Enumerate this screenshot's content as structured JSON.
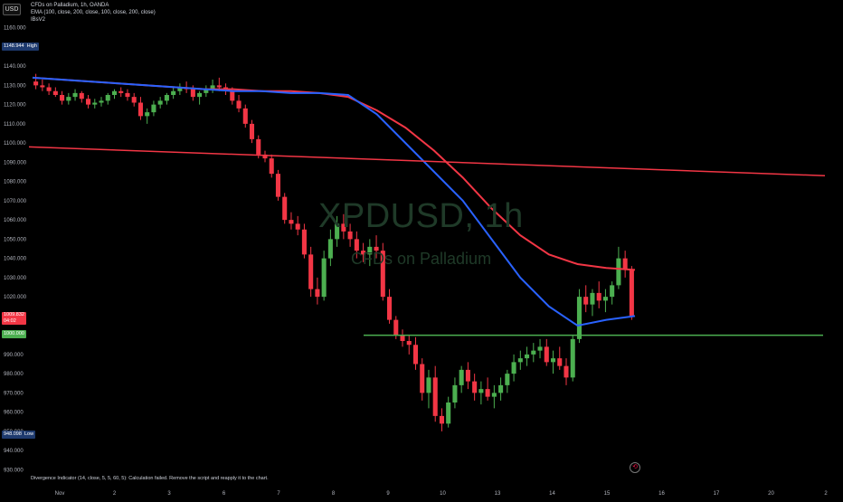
{
  "header": {
    "currency": "USD",
    "title": "CFDs on Palladium, 1h, OANDA",
    "indicator_line": "EMA (100, close, 200, close, 100, close, 200, close)",
    "indicator_line2": "IBsV2"
  },
  "watermark": {
    "symbol": "XPDUSD, 1h",
    "description": "CFDs on Palladium"
  },
  "footer": {
    "note": "Divergence Indicator (14, close, 5, 5, 60, 5): Calculation failed. Remove the script and reapply it to the chart."
  },
  "icons": {
    "replay": "replay-icon"
  },
  "colors": {
    "background": "#000000",
    "ema100": "#2962ff",
    "ema200": "#f23645",
    "trendline": "#f23645",
    "support": "#4caf50",
    "up": "#4caf50",
    "down": "#f23645"
  },
  "price_boxes": {
    "high_value": "1148.944",
    "high_label": "High",
    "current_value": "1009.832",
    "current_sub": "04:02",
    "support_value": "1000.000",
    "low_value": "948.098",
    "low_label": "Low"
  },
  "chart_data": {
    "type": "candlestick",
    "ylim": [
      925,
      1165
    ],
    "yticks": [
      "1160.000",
      "1150.000",
      "1140.000",
      "1130.000",
      "1120.000",
      "1110.000",
      "1100.000",
      "1090.000",
      "1080.000",
      "1070.000",
      "1060.000",
      "1050.000",
      "1040.000",
      "1030.000",
      "1020.000",
      "1010.000",
      "1000.000",
      "990.000",
      "980.000",
      "970.000",
      "960.000",
      "950.000",
      "940.000",
      "930.000"
    ],
    "xticks": [
      "Nov",
      "2",
      "3",
      "6",
      "7",
      "8",
      "9",
      "10",
      "13",
      "14",
      "15",
      "16",
      "17",
      "20",
      "2"
    ],
    "candles": [
      [
        1132,
        1136,
        1128,
        1130
      ],
      [
        1130,
        1133,
        1127,
        1129
      ],
      [
        1129,
        1131,
        1125,
        1127
      ],
      [
        1127,
        1129,
        1124,
        1125
      ],
      [
        1125,
        1127,
        1120,
        1122
      ],
      [
        1122,
        1126,
        1120,
        1124
      ],
      [
        1124,
        1128,
        1122,
        1126
      ],
      [
        1126,
        1127,
        1121,
        1123
      ],
      [
        1123,
        1125,
        1118,
        1120
      ],
      [
        1120,
        1123,
        1118,
        1121
      ],
      [
        1121,
        1124,
        1119,
        1122
      ],
      [
        1122,
        1126,
        1120,
        1125
      ],
      [
        1125,
        1128,
        1123,
        1127
      ],
      [
        1127,
        1129,
        1124,
        1126
      ],
      [
        1126,
        1128,
        1122,
        1124
      ],
      [
        1124,
        1126,
        1119,
        1121
      ],
      [
        1121,
        1124,
        1112,
        1114
      ],
      [
        1114,
        1118,
        1110,
        1116
      ],
      [
        1116,
        1122,
        1114,
        1120
      ],
      [
        1120,
        1124,
        1118,
        1122
      ],
      [
        1122,
        1126,
        1120,
        1125
      ],
      [
        1125,
        1129,
        1123,
        1127
      ],
      [
        1127,
        1131,
        1125,
        1129
      ],
      [
        1129,
        1132,
        1126,
        1128
      ],
      [
        1128,
        1130,
        1122,
        1124
      ],
      [
        1124,
        1127,
        1120,
        1126
      ],
      [
        1126,
        1130,
        1124,
        1128
      ],
      [
        1128,
        1133,
        1126,
        1130
      ],
      [
        1130,
        1134,
        1127,
        1129
      ],
      [
        1129,
        1131,
        1125,
        1127
      ],
      [
        1127,
        1129,
        1120,
        1122
      ],
      [
        1122,
        1125,
        1116,
        1118
      ],
      [
        1118,
        1120,
        1108,
        1110
      ],
      [
        1110,
        1112,
        1100,
        1102
      ],
      [
        1102,
        1104,
        1092,
        1094
      ],
      [
        1094,
        1096,
        1090,
        1092
      ],
      [
        1092,
        1094,
        1082,
        1084
      ],
      [
        1084,
        1086,
        1070,
        1072
      ],
      [
        1072,
        1074,
        1058,
        1060
      ],
      [
        1060,
        1064,
        1055,
        1058
      ],
      [
        1058,
        1062,
        1052,
        1055
      ],
      [
        1055,
        1058,
        1040,
        1042
      ],
      [
        1042,
        1046,
        1020,
        1024
      ],
      [
        1024,
        1030,
        1016,
        1020
      ],
      [
        1020,
        1044,
        1018,
        1040
      ],
      [
        1040,
        1055,
        1036,
        1050
      ],
      [
        1050,
        1062,
        1046,
        1058
      ],
      [
        1058,
        1063,
        1050,
        1054
      ],
      [
        1054,
        1058,
        1046,
        1050
      ],
      [
        1050,
        1054,
        1040,
        1044
      ],
      [
        1044,
        1048,
        1038,
        1042
      ],
      [
        1042,
        1050,
        1036,
        1046
      ],
      [
        1046,
        1052,
        1040,
        1044
      ],
      [
        1044,
        1048,
        1018,
        1020
      ],
      [
        1020,
        1024,
        1006,
        1008
      ],
      [
        1008,
        1010,
        998,
        1000
      ],
      [
        1000,
        1003,
        994,
        997
      ],
      [
        997,
        1000,
        990,
        995
      ],
      [
        995,
        999,
        982,
        985
      ],
      [
        985,
        988,
        966,
        970
      ],
      [
        970,
        982,
        962,
        978
      ],
      [
        978,
        984,
        955,
        958
      ],
      [
        958,
        962,
        950,
        954
      ],
      [
        954,
        968,
        952,
        965
      ],
      [
        965,
        978,
        962,
        974
      ],
      [
        974,
        984,
        970,
        982
      ],
      [
        982,
        986,
        972,
        976
      ],
      [
        976,
        980,
        966,
        970
      ],
      [
        970,
        976,
        964,
        972
      ],
      [
        972,
        978,
        966,
        968
      ],
      [
        968,
        974,
        962,
        970
      ],
      [
        970,
        978,
        966,
        974
      ],
      [
        974,
        982,
        970,
        980
      ],
      [
        980,
        990,
        976,
        986
      ],
      [
        986,
        992,
        982,
        988
      ],
      [
        988,
        994,
        984,
        990
      ],
      [
        990,
        996,
        986,
        992
      ],
      [
        992,
        998,
        988,
        994
      ],
      [
        994,
        998,
        984,
        986
      ],
      [
        986,
        992,
        980,
        988
      ],
      [
        988,
        994,
        982,
        984
      ],
      [
        984,
        988,
        974,
        978
      ],
      [
        978,
        1000,
        976,
        998
      ],
      [
        998,
        1024,
        996,
        1020
      ],
      [
        1020,
        1026,
        1012,
        1016
      ],
      [
        1016,
        1024,
        1010,
        1022
      ],
      [
        1022,
        1028,
        1014,
        1018
      ],
      [
        1018,
        1024,
        1012,
        1020
      ],
      [
        1020,
        1028,
        1016,
        1026
      ],
      [
        1026,
        1046,
        1024,
        1040
      ],
      [
        1040,
        1044,
        1030,
        1034
      ],
      [
        1034,
        1036,
        1008,
        1010
      ]
    ],
    "ema100": [
      1134,
      1133,
      1132,
      1131,
      1130,
      1129,
      1128,
      1127,
      1127,
      1126,
      1126,
      1125,
      1115,
      1100,
      1085,
      1070,
      1050,
      1030,
      1015,
      1005,
      1008,
      1010
    ],
    "ema200": [
      1134,
      1133,
      1132,
      1131,
      1130,
      1129,
      1128,
      1128,
      1127,
      1127,
      1126,
      1124,
      1117,
      1108,
      1096,
      1082,
      1066,
      1052,
      1042,
      1037,
      1035,
      1034
    ],
    "trendline": [
      [
        0,
        1098
      ],
      [
        1,
        1083
      ]
    ],
    "support": 1000,
    "highs_lows": {
      "high": 1148.944,
      "low": 948.098
    }
  }
}
